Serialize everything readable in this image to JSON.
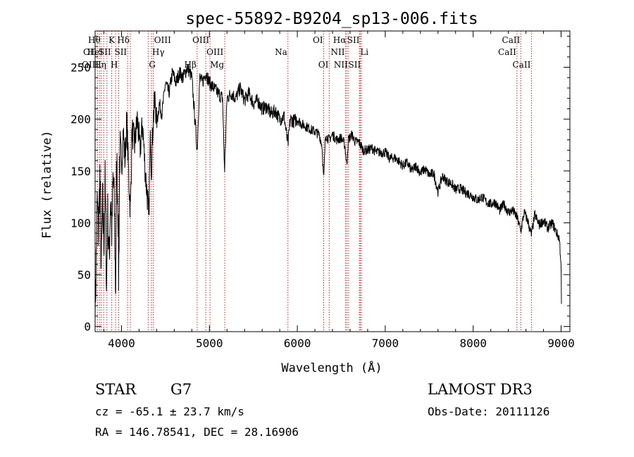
{
  "chart_data": {
    "type": "line",
    "title": "spec-55892-B9204_sp13-006.fits",
    "xlabel": "Wavelength (Å)",
    "ylabel": "Flux (relative)",
    "xlim": [
      3700,
      9100
    ],
    "ylim": [
      -5,
      285
    ],
    "x_ticks": [
      4000,
      5000,
      6000,
      7000,
      8000,
      9000
    ],
    "y_ticks": [
      0,
      50,
      100,
      150,
      200,
      250
    ],
    "grid": false,
    "anchors": [
      [
        3700,
        10
      ],
      [
        3712,
        60
      ],
      [
        3725,
        120
      ],
      [
        3740,
        90
      ],
      [
        3755,
        150
      ],
      [
        3770,
        50
      ],
      [
        3785,
        120
      ],
      [
        3800,
        80
      ],
      [
        3815,
        140
      ],
      [
        3830,
        40
      ],
      [
        3845,
        110
      ],
      [
        3860,
        60
      ],
      [
        3875,
        130
      ],
      [
        3890,
        90
      ],
      [
        3905,
        145
      ],
      [
        3920,
        110
      ],
      [
        3933,
        30
      ],
      [
        3945,
        160
      ],
      [
        3960,
        120
      ],
      [
        3968,
        40
      ],
      [
        3980,
        170
      ],
      [
        4000,
        150
      ],
      [
        4020,
        190
      ],
      [
        4040,
        160
      ],
      [
        4060,
        200
      ],
      [
        4080,
        150
      ],
      [
        4101,
        110
      ],
      [
        4120,
        190
      ],
      [
        4150,
        175
      ],
      [
        4180,
        200
      ],
      [
        4210,
        170
      ],
      [
        4240,
        195
      ],
      [
        4270,
        150
      ],
      [
        4300,
        120
      ],
      [
        4310,
        100
      ],
      [
        4330,
        190
      ],
      [
        4340,
        150
      ],
      [
        4360,
        200
      ],
      [
        4383,
        220
      ],
      [
        4400,
        195
      ],
      [
        4430,
        215
      ],
      [
        4460,
        205
      ],
      [
        4500,
        235
      ],
      [
        4540,
        225
      ],
      [
        4580,
        245
      ],
      [
        4620,
        235
      ],
      [
        4660,
        245
      ],
      [
        4700,
        240
      ],
      [
        4750,
        250
      ],
      [
        4800,
        240
      ],
      [
        4861,
        170
      ],
      [
        4890,
        240
      ],
      [
        4920,
        235
      ],
      [
        4960,
        245
      ],
      [
        5000,
        235
      ],
      [
        5050,
        230
      ],
      [
        5100,
        225
      ],
      [
        5150,
        220
      ],
      [
        5172,
        150
      ],
      [
        5200,
        220
      ],
      [
        5250,
        225
      ],
      [
        5300,
        220
      ],
      [
        5350,
        230
      ],
      [
        5400,
        218
      ],
      [
        5450,
        225
      ],
      [
        5500,
        215
      ],
      [
        5550,
        218
      ],
      [
        5600,
        210
      ],
      [
        5650,
        212
      ],
      [
        5700,
        205
      ],
      [
        5750,
        208
      ],
      [
        5800,
        200
      ],
      [
        5850,
        203
      ],
      [
        5893,
        175
      ],
      [
        5920,
        200
      ],
      [
        5960,
        198
      ],
      [
        6000,
        200
      ],
      [
        6050,
        195
      ],
      [
        6100,
        193
      ],
      [
        6150,
        190
      ],
      [
        6200,
        188
      ],
      [
        6250,
        185
      ],
      [
        6280,
        175
      ],
      [
        6300,
        140
      ],
      [
        6320,
        185
      ],
      [
        6360,
        180
      ],
      [
        6400,
        185
      ],
      [
        6450,
        180
      ],
      [
        6500,
        182
      ],
      [
        6540,
        175
      ],
      [
        6563,
        155
      ],
      [
        6580,
        180
      ],
      [
        6620,
        185
      ],
      [
        6660,
        178
      ],
      [
        6700,
        178
      ],
      [
        6750,
        170
      ],
      [
        6800,
        170
      ],
      [
        6850,
        172
      ],
      [
        6900,
        168
      ],
      [
        6950,
        168
      ],
      [
        7000,
        168
      ],
      [
        7050,
        162
      ],
      [
        7100,
        163
      ],
      [
        7150,
        160
      ],
      [
        7200,
        155
      ],
      [
        7250,
        158
      ],
      [
        7300,
        150
      ],
      [
        7350,
        155
      ],
      [
        7400,
        148
      ],
      [
        7450,
        152
      ],
      [
        7500,
        146
      ],
      [
        7550,
        148
      ],
      [
        7600,
        130
      ],
      [
        7650,
        145
      ],
      [
        7700,
        140
      ],
      [
        7750,
        138
      ],
      [
        7800,
        132
      ],
      [
        7850,
        133
      ],
      [
        7900,
        130
      ],
      [
        7950,
        128
      ],
      [
        8000,
        125
      ],
      [
        8050,
        122
      ],
      [
        8100,
        125
      ],
      [
        8150,
        120
      ],
      [
        8200,
        118
      ],
      [
        8250,
        120
      ],
      [
        8300,
        112
      ],
      [
        8350,
        118
      ],
      [
        8400,
        110
      ],
      [
        8450,
        112
      ],
      [
        8500,
        105
      ],
      [
        8542,
        92
      ],
      [
        8580,
        110
      ],
      [
        8620,
        102
      ],
      [
        8662,
        88
      ],
      [
        8700,
        108
      ],
      [
        8750,
        98
      ],
      [
        8800,
        102
      ],
      [
        8850,
        95
      ],
      [
        8900,
        100
      ],
      [
        8950,
        90
      ],
      [
        8980,
        85
      ],
      [
        9000,
        60
      ],
      [
        9005,
        10
      ]
    ],
    "lines": [
      {
        "x": 3727,
        "label": "OII",
        "row": 1,
        "side": "left"
      },
      {
        "x": 3750,
        "label": "OIII",
        "row": 2,
        "side": "left"
      },
      {
        "x": 3770,
        "label": "Hθ",
        "row": 0,
        "side": "left"
      },
      {
        "x": 3798,
        "label": "HeI",
        "row": 1,
        "side": "left"
      },
      {
        "x": 3835,
        "label": "Hη",
        "row": 2,
        "side": "left"
      },
      {
        "x": 3889,
        "label": "SII",
        "row": 1,
        "side": "left"
      },
      {
        "x": 3933,
        "label": "K",
        "row": 0,
        "side": "left"
      },
      {
        "x": 3968,
        "label": "H",
        "row": 2,
        "side": "left"
      },
      {
        "x": 4070,
        "label": "SII",
        "row": 1,
        "side": "left"
      },
      {
        "x": 4101,
        "label": "Hδ",
        "row": 0,
        "side": "left"
      },
      {
        "x": 4304,
        "label": "G",
        "row": 2,
        "side": "right"
      },
      {
        "x": 4340,
        "label": "Hγ",
        "row": 1,
        "side": "right"
      },
      {
        "x": 4363,
        "label": "OIII",
        "row": 0,
        "side": "right"
      },
      {
        "x": 4861,
        "label": "Hβ",
        "row": 2,
        "side": "left"
      },
      {
        "x": 4959,
        "label": "OIII",
        "row": 1,
        "side": "right"
      },
      {
        "x": 5007,
        "label": "OIII",
        "row": 0,
        "side": "left"
      },
      {
        "x": 5175,
        "label": "Mg",
        "row": 2,
        "side": "left"
      },
      {
        "x": 5893,
        "label": "Na",
        "row": 1,
        "side": "left"
      },
      {
        "x": 6300,
        "label": "OI",
        "row": 0,
        "side": "left"
      },
      {
        "x": 6363,
        "label": "OI",
        "row": 2,
        "side": "left"
      },
      {
        "x": 6548,
        "label": "NII",
        "row": 1,
        "side": "left"
      },
      {
        "x": 6563,
        "label": "Hα",
        "row": 0,
        "side": "left"
      },
      {
        "x": 6583,
        "label": "NII",
        "row": 2,
        "side": "left"
      },
      {
        "x": 6707,
        "label": "Li",
        "row": 1,
        "side": "right"
      },
      {
        "x": 6716,
        "label": "SII",
        "row": 0,
        "side": "left"
      },
      {
        "x": 6730,
        "label": "SII",
        "row": 2,
        "side": "left"
      },
      {
        "x": 8498,
        "label": "CaII",
        "row": 1,
        "side": "left"
      },
      {
        "x": 8542,
        "label": "CaII",
        "row": 0,
        "side": "left"
      },
      {
        "x": 8662,
        "label": "CaII",
        "row": 2,
        "side": "left"
      }
    ]
  },
  "info": {
    "object_class": "STAR",
    "subclass": "G7",
    "survey": "LAMOST DR3",
    "cz": "cz = -65.1 ± 23.7 km/s",
    "obs_date": "Obs-Date: 20111126",
    "coords": "RA = 146.78541, DEC =  28.16906"
  }
}
